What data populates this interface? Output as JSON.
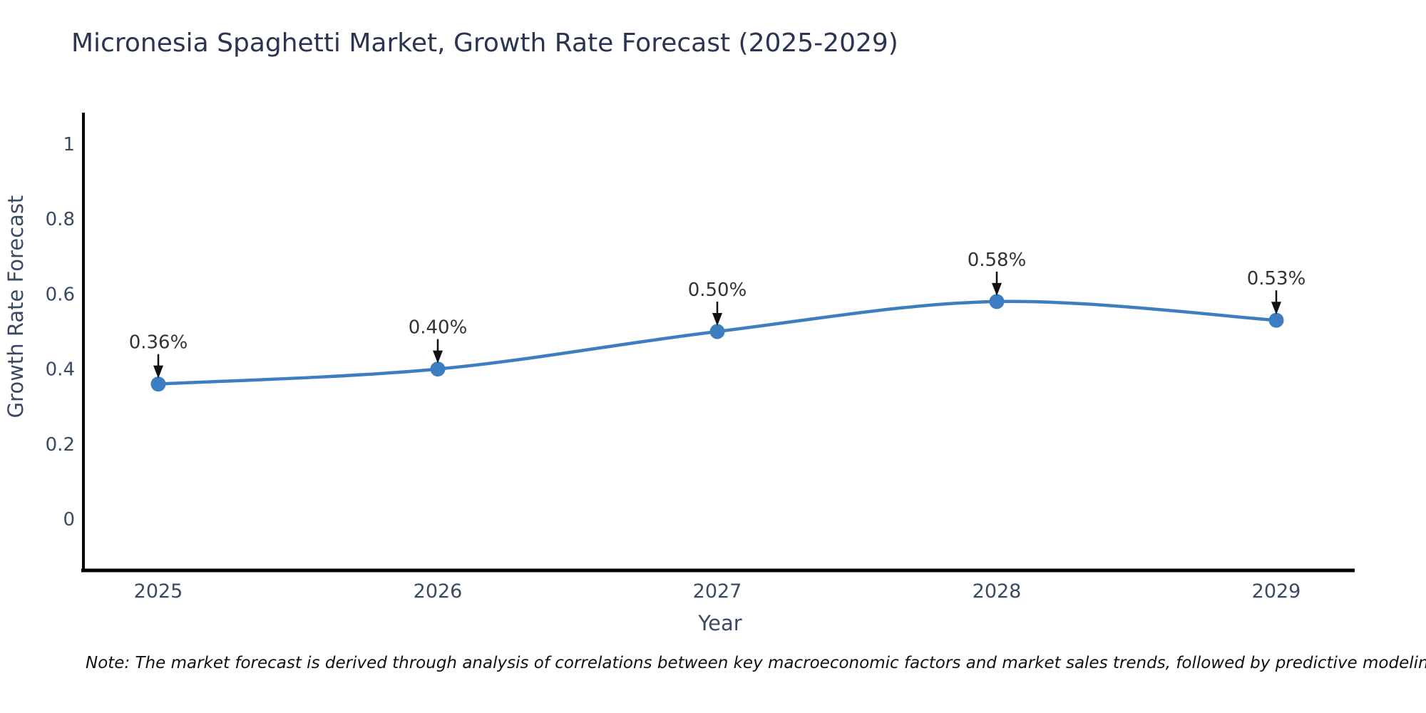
{
  "title": "Micronesia Spaghetti Market, Growth Rate Forecast (2025-2029)",
  "note": "Note: The market forecast is derived through analysis of correlations between key macroeconomic factors and market sales trends, followed by predictive modeling to project future sales",
  "chart_data": {
    "type": "line",
    "title": "Micronesia Spaghetti Market, Growth Rate Forecast (2025-2029)",
    "categories": [
      "2025",
      "2026",
      "2027",
      "2028",
      "2029"
    ],
    "values": [
      0.36,
      0.4,
      0.5,
      0.58,
      0.53
    ],
    "point_labels": [
      "0.36%",
      "0.40%",
      "0.50%",
      "0.58%",
      "0.53%"
    ],
    "xlabel": "Year",
    "ylabel": "Growth Rate Forecast",
    "ytick_values": [
      0,
      0.2,
      0.4,
      0.6,
      0.8,
      1
    ],
    "ytick_labels": [
      "0",
      "0.2",
      "0.4",
      "0.6",
      "0.8",
      "1"
    ],
    "ylim": [
      -0.14,
      1.08
    ],
    "grid": false,
    "legend": false,
    "line_smoothing": "spline",
    "colors": {
      "line": "#3d7ebf",
      "marker": "#3c7ebf",
      "axis": "#000000",
      "tick_label": "#3b4a63",
      "axis_title": "#3b4a63",
      "annotation_text": "#333333",
      "annotation_arrow": "#111111",
      "title": "#2b3551",
      "background": "#ffffff"
    }
  }
}
